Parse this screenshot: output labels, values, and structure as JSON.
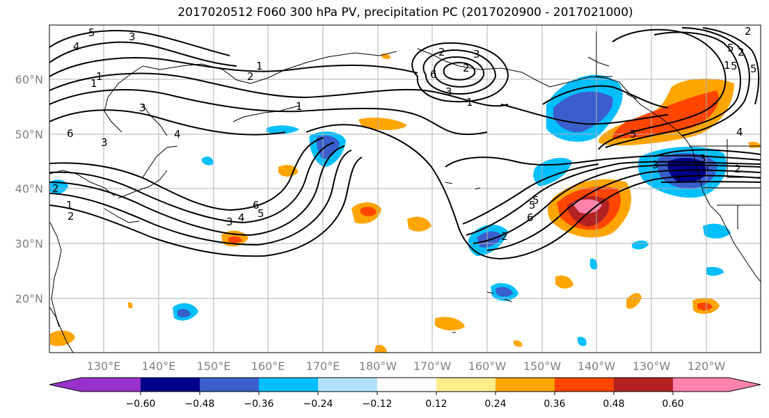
{
  "title": "2017020512 F060 300 hPa PV, precipitation PC (2017020900 - 2017021000)",
  "map": {
    "lat_labels": [
      "60°N",
      "50°N",
      "40°N",
      "30°N",
      "20°N"
    ],
    "lon_labels": [
      "130°E",
      "140°E",
      "150°E",
      "160°E",
      "170°E",
      "180°W",
      "170°W",
      "160°W",
      "150°W",
      "140°W",
      "130°W",
      "120°W"
    ],
    "contour_labels": [
      "5",
      "3",
      "4",
      "1",
      "2",
      "6",
      "2",
      "6",
      "3",
      "3",
      "2",
      "1",
      "2",
      "1",
      "6",
      "5",
      "4",
      "3",
      "3",
      "1",
      "2",
      "1",
      "2",
      "3",
      "4",
      "1",
      "5",
      "2",
      "4",
      "5",
      "5",
      "3",
      "5",
      "2",
      "1",
      "5",
      "3",
      "6",
      "2",
      "5",
      "1"
    ]
  },
  "colorbar": {
    "colors": [
      "#9932CC",
      "#00008B",
      "#3A5FCD",
      "#00BFFF",
      "#B0E2FF",
      "#FFFFFF",
      "#FFEC8B",
      "#FFA500",
      "#FF4500",
      "#B22222",
      "#FF82AB"
    ],
    "tick_labels": [
      "−0.60",
      "−0.48",
      "−0.36",
      "−0.24",
      "−0.12",
      "0.12",
      "0.24",
      "0.36",
      "0.48",
      "0.60"
    ]
  }
}
